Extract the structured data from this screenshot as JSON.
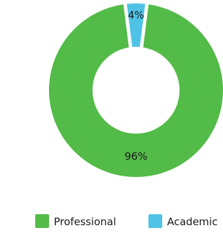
{
  "chart_data": {
    "type": "pie",
    "style": "donut",
    "categories": [
      "Professional",
      "Academic"
    ],
    "values": [
      96,
      4
    ],
    "labels": [
      "96%",
      "4%"
    ],
    "colors": [
      "#53bb48",
      "#4fc3e6"
    ],
    "legend_position": "bottom",
    "title": ""
  }
}
